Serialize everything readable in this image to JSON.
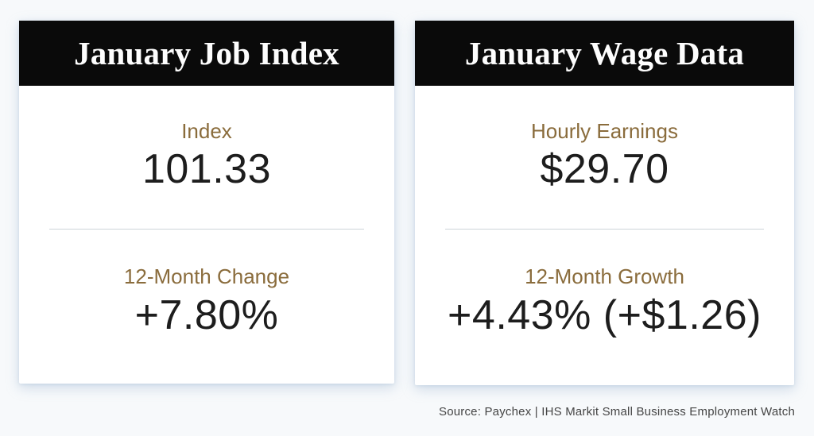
{
  "page": {
    "source_note": "Source: Paychex | IHS Markit Small Business Employment Watch"
  },
  "colors": {
    "page_bg": "#f7f9fb",
    "header_bg": "#0a0a0a",
    "header_text": "#fdfdfd",
    "label_color": "#8a6c3c",
    "value_color": "#1d1d1d",
    "divider_color": "#ccd4d9",
    "source_color": "#454545",
    "card_bg": "#ffffff"
  },
  "cards": [
    {
      "title": "January Job Index",
      "stats": [
        {
          "label": "Index",
          "value": "101.33"
        },
        {
          "label": "12-Month Change",
          "value": "+7.80%"
        }
      ]
    },
    {
      "title": "January Wage Data",
      "stats": [
        {
          "label": "Hourly Earnings",
          "value": "$29.70"
        },
        {
          "label": "12-Month Growth",
          "value": "+4.43% (+$1.26)"
        }
      ]
    }
  ],
  "chart_data": {
    "type": "table",
    "title": "January Small Business Employment Watch — KPI cards",
    "source": "Source: Paychex | IHS Markit Small Business Employment Watch",
    "tables": [
      {
        "title": "January Job Index",
        "rows": [
          [
            "Index",
            101.33
          ],
          [
            "12-Month Change",
            "+7.80%"
          ]
        ]
      },
      {
        "title": "January Wage Data",
        "rows": [
          [
            "Hourly Earnings",
            "$29.70"
          ],
          [
            "12-Month Growth",
            "+4.43% (+$1.26)"
          ]
        ]
      }
    ]
  }
}
